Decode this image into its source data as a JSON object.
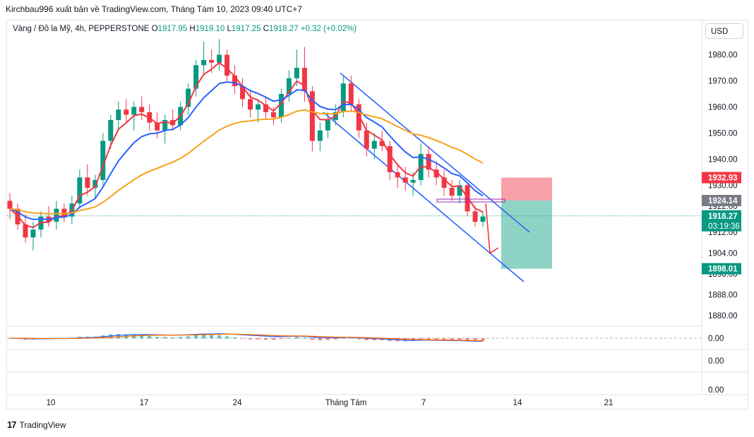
{
  "header": {
    "publisher_line": "Kirchbau996 xuất bản về TradingView.com, Tháng Tám 10, 2023 09:40 UTC+7"
  },
  "legend": {
    "symbol": "Vàng / Đô la Mỹ, 4h, PEPPERSTONE",
    "open_label": "O",
    "open": "1917.95",
    "high_label": "H",
    "high": "1919.10",
    "low_label": "L",
    "low": "1917.25",
    "close_label": "C",
    "close": "1918.27",
    "change": "+0.32 (+0.02%)"
  },
  "currency_button": "USD",
  "footer": {
    "logo_text": "TradingView"
  },
  "colors": {
    "up": "#089981",
    "down": "#f23645",
    "ema_fast": "#f23645",
    "ema_mid": "#2962ff",
    "ema_slow": "#f7a21b",
    "channel": "#2962ff",
    "stop_zone": "#f7a1a9",
    "target_zone": "#8fd3c4"
  },
  "chart_data": {
    "type": "candlestick",
    "timeframe": "4h",
    "price_axis": {
      "ticks": [
        "1980.00",
        "1970.00",
        "1960.00",
        "1950.00",
        "1940.00",
        "1930.00",
        "1922.00",
        "1912.00",
        "1904.00",
        "1896.00",
        "1888.00",
        "1880.00"
      ],
      "ylim": [
        1876,
        1988
      ]
    },
    "x_axis": {
      "labels": [
        "10",
        "17",
        "24",
        "Tháng Tám",
        "7",
        "14",
        "21"
      ]
    },
    "price_markers": [
      {
        "label": "1932.93",
        "value": 1932.93,
        "color": "#f23645"
      },
      {
        "label": "1924.14",
        "value": 1924.14,
        "color": "#787b86"
      },
      {
        "label": "1918.27",
        "value": 1918.27,
        "color": "#089981",
        "countdown": "03:19:36"
      },
      {
        "label": "1898.01",
        "value": 1898.01,
        "color": "#089981"
      }
    ],
    "position": {
      "side": "short",
      "entry": 1924.14,
      "stop": 1932.93,
      "target": 1898.01
    },
    "channel": {
      "upper": [
        [
          0,
          1973
        ],
        [
          0.55,
          1912
        ]
      ],
      "lower": [
        [
          0,
          1958
        ],
        [
          0.55,
          1893
        ]
      ]
    },
    "candles": [
      {
        "o": 1924,
        "h": 1927,
        "l": 1917,
        "c": 1921
      },
      {
        "o": 1921,
        "h": 1923,
        "l": 1913,
        "c": 1915
      },
      {
        "o": 1915,
        "h": 1919,
        "l": 1908,
        "c": 1910
      },
      {
        "o": 1910,
        "h": 1916,
        "l": 1905,
        "c": 1913
      },
      {
        "o": 1913,
        "h": 1920,
        "l": 1910,
        "c": 1918
      },
      {
        "o": 1918,
        "h": 1922,
        "l": 1914,
        "c": 1916
      },
      {
        "o": 1916,
        "h": 1924,
        "l": 1913,
        "c": 1921
      },
      {
        "o": 1921,
        "h": 1923,
        "l": 1916,
        "c": 1918
      },
      {
        "o": 1918,
        "h": 1926,
        "l": 1915,
        "c": 1923
      },
      {
        "o": 1923,
        "h": 1936,
        "l": 1921,
        "c": 1933
      },
      {
        "o": 1933,
        "h": 1938,
        "l": 1926,
        "c": 1929
      },
      {
        "o": 1929,
        "h": 1934,
        "l": 1925,
        "c": 1932
      },
      {
        "o": 1932,
        "h": 1950,
        "l": 1930,
        "c": 1947
      },
      {
        "o": 1947,
        "h": 1957,
        "l": 1944,
        "c": 1955
      },
      {
        "o": 1955,
        "h": 1962,
        "l": 1951,
        "c": 1959
      },
      {
        "o": 1959,
        "h": 1963,
        "l": 1954,
        "c": 1957
      },
      {
        "o": 1957,
        "h": 1962,
        "l": 1951,
        "c": 1960
      },
      {
        "o": 1960,
        "h": 1964,
        "l": 1955,
        "c": 1958
      },
      {
        "o": 1958,
        "h": 1961,
        "l": 1951,
        "c": 1954
      },
      {
        "o": 1954,
        "h": 1958,
        "l": 1948,
        "c": 1951
      },
      {
        "o": 1951,
        "h": 1957,
        "l": 1946,
        "c": 1955
      },
      {
        "o": 1955,
        "h": 1959,
        "l": 1951,
        "c": 1953
      },
      {
        "o": 1953,
        "h": 1962,
        "l": 1951,
        "c": 1960
      },
      {
        "o": 1960,
        "h": 1969,
        "l": 1957,
        "c": 1967
      },
      {
        "o": 1967,
        "h": 1978,
        "l": 1964,
        "c": 1976
      },
      {
        "o": 1976,
        "h": 1985,
        "l": 1972,
        "c": 1978
      },
      {
        "o": 1978,
        "h": 1982,
        "l": 1973,
        "c": 1977
      },
      {
        "o": 1977,
        "h": 1986,
        "l": 1974,
        "c": 1980
      },
      {
        "o": 1980,
        "h": 1982,
        "l": 1970,
        "c": 1972
      },
      {
        "o": 1972,
        "h": 1976,
        "l": 1965,
        "c": 1968
      },
      {
        "o": 1968,
        "h": 1971,
        "l": 1960,
        "c": 1963
      },
      {
        "o": 1963,
        "h": 1966,
        "l": 1956,
        "c": 1959
      },
      {
        "o": 1959,
        "h": 1963,
        "l": 1954,
        "c": 1961
      },
      {
        "o": 1961,
        "h": 1964,
        "l": 1955,
        "c": 1958
      },
      {
        "o": 1958,
        "h": 1960,
        "l": 1953,
        "c": 1956
      },
      {
        "o": 1956,
        "h": 1967,
        "l": 1954,
        "c": 1965
      },
      {
        "o": 1965,
        "h": 1974,
        "l": 1962,
        "c": 1971
      },
      {
        "o": 1971,
        "h": 1982,
        "l": 1968,
        "c": 1975
      },
      {
        "o": 1975,
        "h": 1983,
        "l": 1962,
        "c": 1966
      },
      {
        "o": 1966,
        "h": 1968,
        "l": 1943,
        "c": 1947
      },
      {
        "o": 1947,
        "h": 1954,
        "l": 1943,
        "c": 1951
      },
      {
        "o": 1951,
        "h": 1958,
        "l": 1948,
        "c": 1955
      },
      {
        "o": 1955,
        "h": 1961,
        "l": 1953,
        "c": 1958
      },
      {
        "o": 1958,
        "h": 1972,
        "l": 1956,
        "c": 1969
      },
      {
        "o": 1969,
        "h": 1972,
        "l": 1958,
        "c": 1961
      },
      {
        "o": 1961,
        "h": 1963,
        "l": 1948,
        "c": 1951
      },
      {
        "o": 1951,
        "h": 1954,
        "l": 1941,
        "c": 1944
      },
      {
        "o": 1944,
        "h": 1950,
        "l": 1940,
        "c": 1947
      },
      {
        "o": 1947,
        "h": 1951,
        "l": 1943,
        "c": 1945
      },
      {
        "o": 1945,
        "h": 1947,
        "l": 1932,
        "c": 1935
      },
      {
        "o": 1935,
        "h": 1938,
        "l": 1929,
        "c": 1933
      },
      {
        "o": 1933,
        "h": 1937,
        "l": 1928,
        "c": 1931
      },
      {
        "o": 1931,
        "h": 1935,
        "l": 1926,
        "c": 1932
      },
      {
        "o": 1932,
        "h": 1946,
        "l": 1930,
        "c": 1942
      },
      {
        "o": 1942,
        "h": 1945,
        "l": 1933,
        "c": 1936
      },
      {
        "o": 1936,
        "h": 1939,
        "l": 1930,
        "c": 1933
      },
      {
        "o": 1933,
        "h": 1936,
        "l": 1926,
        "c": 1929
      },
      {
        "o": 1929,
        "h": 1932,
        "l": 1924,
        "c": 1926
      },
      {
        "o": 1926,
        "h": 1932,
        "l": 1923,
        "c": 1930
      },
      {
        "o": 1930,
        "h": 1931,
        "l": 1918,
        "c": 1920
      },
      {
        "o": 1920,
        "h": 1922,
        "l": 1914,
        "c": 1916
      },
      {
        "o": 1916,
        "h": 1920,
        "l": 1914,
        "c": 1918
      }
    ],
    "moving_averages": [
      {
        "name": "",
        "period_hint": "fast",
        "color": "#f23645"
      },
      {
        "name": "",
        "period_hint": "mid",
        "color": "#2962ff"
      },
      {
        "name": "",
        "period_hint": "slow",
        "color": "#f7a21b"
      }
    ],
    "oscillator": {
      "ticks": [
        "0.00",
        "0.00",
        "0.00"
      ],
      "zero_line": 0.0
    }
  }
}
